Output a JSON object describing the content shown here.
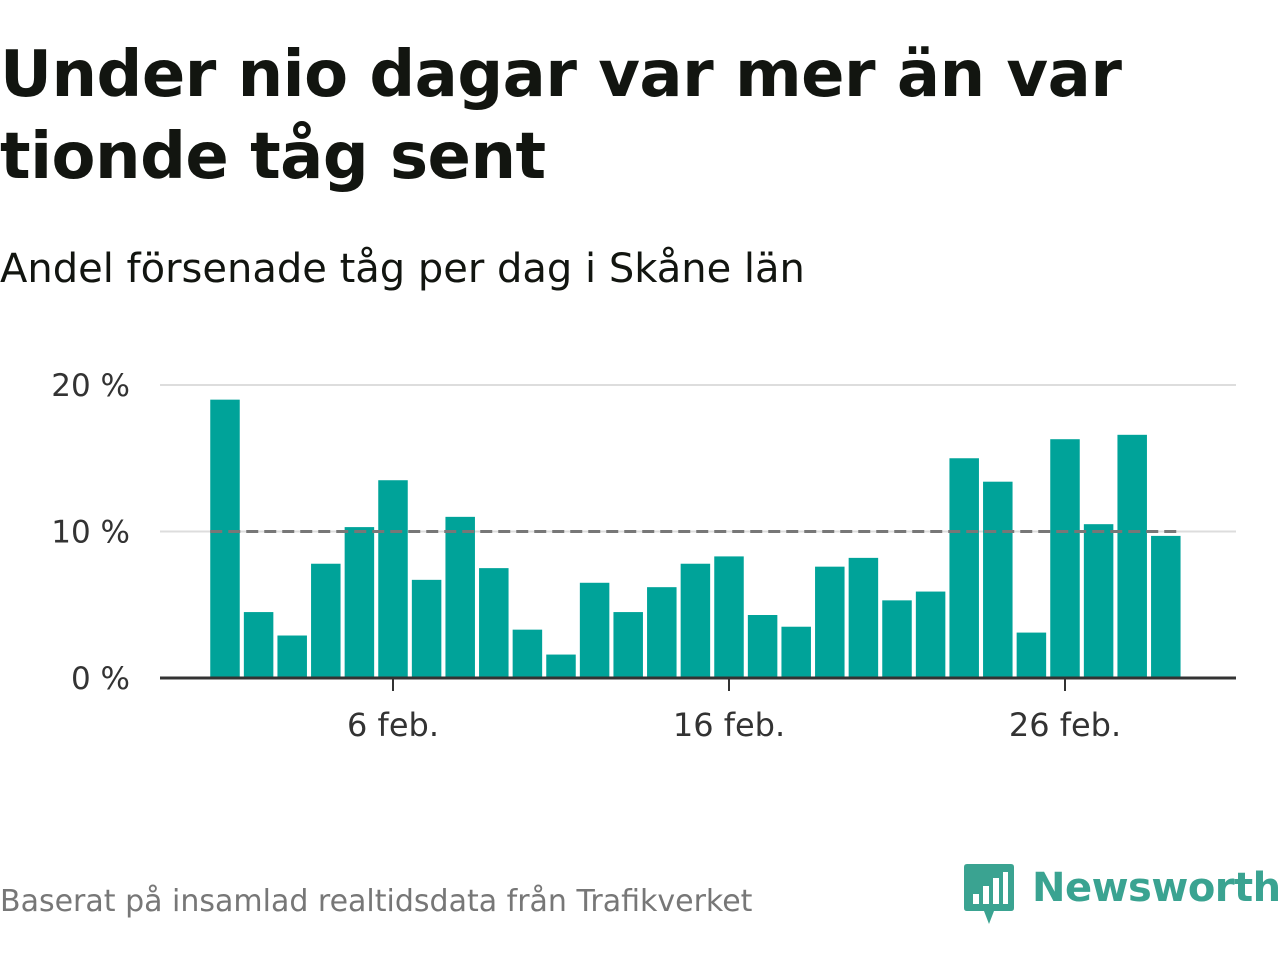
{
  "title": "Under nio dagar var mer än var tionde tåg sent",
  "subtitle": "Andel försenade tåg per dag i Skåne län",
  "source": "Baserat på insamlad realtidsdata från Trafikverket",
  "brand": {
    "name": "Newsworthy",
    "color": "#3aa391"
  },
  "colors": {
    "bar": "#00a399",
    "reference_line": "#777777",
    "grid": "#dddddd",
    "axis": "#333333"
  },
  "chart_data": {
    "type": "bar",
    "x_unit": "day of February",
    "x": [
      1,
      2,
      3,
      4,
      5,
      6,
      7,
      8,
      9,
      10,
      11,
      12,
      13,
      14,
      15,
      16,
      17,
      18,
      19,
      20,
      21,
      22,
      23,
      24,
      25,
      26,
      27,
      28,
      29
    ],
    "values": [
      19.0,
      4.5,
      2.9,
      7.8,
      10.3,
      13.5,
      6.7,
      11.0,
      7.5,
      3.3,
      1.6,
      6.5,
      4.5,
      6.2,
      7.8,
      8.3,
      4.3,
      3.5,
      7.6,
      8.2,
      5.3,
      5.9,
      15.0,
      13.4,
      3.1,
      16.3,
      10.5,
      16.6,
      9.7
    ],
    "title": "Under nio dagar var mer än var tionde tåg sent",
    "subtitle": "Andel försenade tåg per dag i Skåne län",
    "xlabel": "",
    "ylabel": "",
    "ylim": [
      0,
      20
    ],
    "yticks": [
      0,
      10,
      20
    ],
    "ytick_labels": [
      "0 %",
      "10 %",
      "20 %"
    ],
    "xticks": [
      6,
      16,
      26
    ],
    "xtick_labels": [
      "6 feb.",
      "16 feb.",
      "26 feb."
    ],
    "reference_line": {
      "value": 10,
      "style": "dashed"
    },
    "grid": true,
    "legend": false
  }
}
